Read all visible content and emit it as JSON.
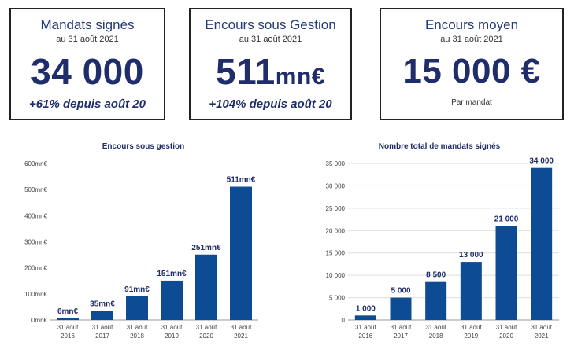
{
  "kpis": [
    {
      "title": "Mandats signés",
      "subtitle": "au 31 août 2021",
      "value": "34 000",
      "unit": "",
      "note": "+61% depuis août 20"
    },
    {
      "title": "Encours sous Gestion",
      "subtitle": "au 31 août 2021",
      "value": "511",
      "unit": "mn€",
      "note": "+104% depuis août 20"
    },
    {
      "title": "Encours moyen",
      "subtitle": "au 31 août 2021",
      "value": "15 000 €",
      "unit": "",
      "note": "Par mandat"
    }
  ],
  "colors": {
    "bar": "#0d4c94",
    "text": "#1f2d6b",
    "grid": "#dddddd"
  },
  "chart_data": [
    {
      "type": "bar",
      "title": "Encours sous gestion",
      "categories": [
        "31 août 2016",
        "31 août 2017",
        "31 août 2018",
        "31 août 2019",
        "31 août 2020",
        "31 août 2021"
      ],
      "values": [
        6,
        35,
        91,
        151,
        251,
        511
      ],
      "data_labels": [
        "6mn€",
        "35mn€",
        "91mn€",
        "151mn€",
        "251mn€",
        "511mn€"
      ],
      "y_ticks": [
        0,
        100,
        200,
        300,
        400,
        500,
        600
      ],
      "y_tick_labels": [
        "0mn€",
        "100mn€",
        "200mn€",
        "300mn€",
        "400mn€",
        "500mn€",
        "600mn€"
      ],
      "ylim": [
        0,
        600
      ],
      "grid": false
    },
    {
      "type": "bar",
      "title": "Nombre total de mandats signés",
      "categories": [
        "31 août 2016",
        "31 août 2017",
        "31 août 2018",
        "31 août 2019",
        "31 août 2020",
        "31 août 2021"
      ],
      "values": [
        1000,
        5000,
        8500,
        13000,
        21000,
        34000
      ],
      "data_labels": [
        "1 000",
        "5 000",
        "8 500",
        "13 000",
        "21 000",
        "34 000"
      ],
      "y_ticks": [
        0,
        5000,
        10000,
        15000,
        20000,
        25000,
        30000,
        35000
      ],
      "y_tick_labels": [
        "0",
        "5 000",
        "10 000",
        "15 000",
        "20 000",
        "25 000",
        "30 000",
        "35 000"
      ],
      "ylim": [
        0,
        35000
      ],
      "grid": true
    }
  ]
}
